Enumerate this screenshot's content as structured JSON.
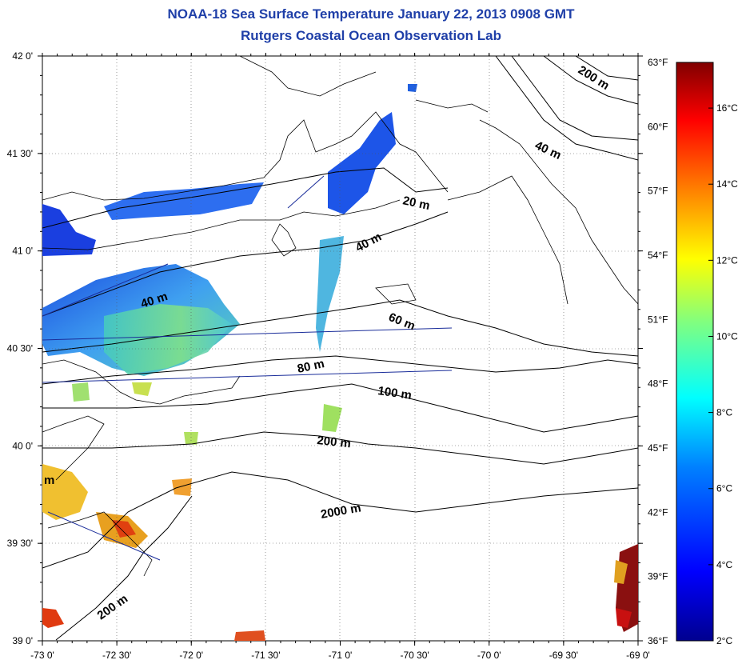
{
  "title_line1": "NOAA-18 Sea Surface Temperature January 22, 2013 0908 GMT",
  "title_line2": "Rutgers Coastal Ocean Observation Lab",
  "lon_ticks": [
    "-73 0'",
    "-72 30'",
    "-72 0'",
    "-71 30'",
    "-71 0'",
    "-70 30'",
    "-70 0'",
    "-69 30'",
    "-69 0'"
  ],
  "lat_ticks": [
    "42 0'",
    "41 30'",
    "41 0'",
    "40 30'",
    "40 0'",
    "39 30'",
    "39 0'"
  ],
  "colorbar": {
    "f_labels": [
      "63°F",
      "60°F",
      "57°F",
      "54°F",
      "51°F",
      "48°F",
      "45°F",
      "42°F",
      "39°F",
      "36°F"
    ],
    "c_labels": [
      "16°C",
      "14°C",
      "12°C",
      "10°C",
      "8°C",
      "6°C",
      "4°C",
      "2°C"
    ],
    "range_c": [
      2,
      17.2
    ],
    "colors": [
      "#00008f",
      "#0000ff",
      "#0080ff",
      "#00ffff",
      "#80ff80",
      "#ffff00",
      "#ff8000",
      "#ff0000",
      "#800000"
    ]
  },
  "isobath_labels": [
    "200 m",
    "40 m",
    "20 m",
    "40 m",
    "40 m",
    "60 m",
    "80 m",
    "100 m",
    "200 m",
    "2000 m",
    "200 m",
    "m"
  ]
}
